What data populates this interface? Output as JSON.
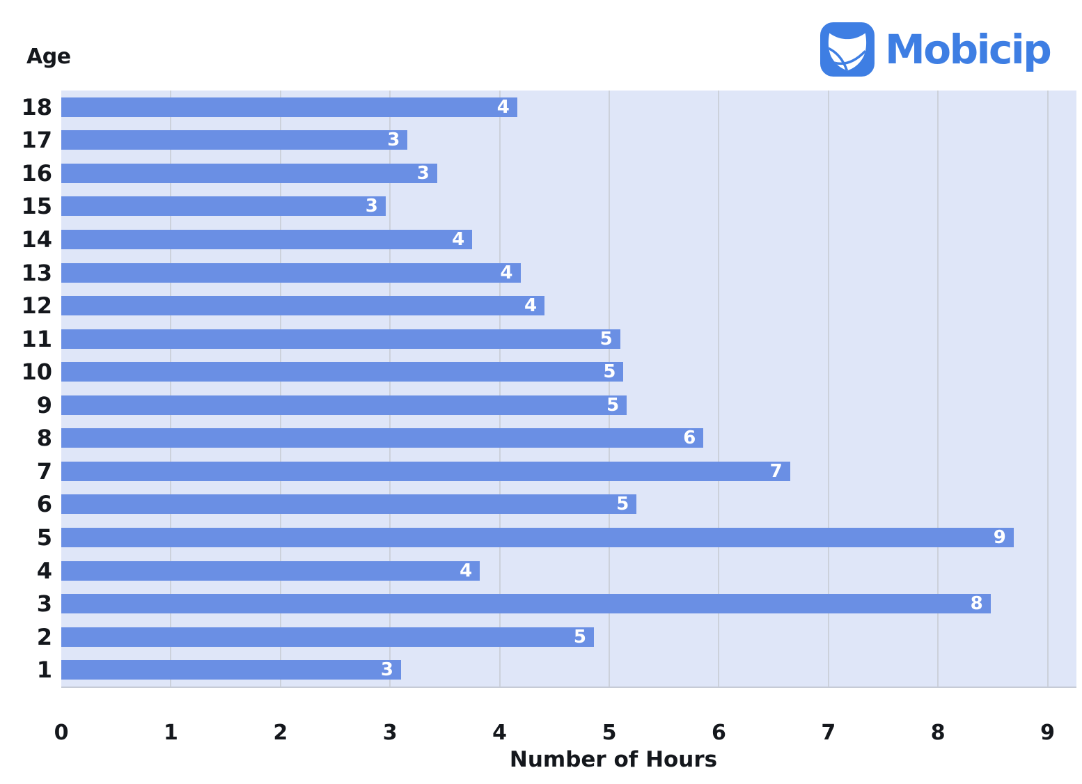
{
  "logo": {
    "brand": "Mobicip",
    "icon": "mobicip-shield-icon"
  },
  "chart_data": {
    "type": "bar",
    "orientation": "horizontal",
    "title": "",
    "ylabel": "Age",
    "xlabel": "Number of Hours",
    "categories": [
      "18",
      "17",
      "16",
      "15",
      "14",
      "13",
      "12",
      "11",
      "10",
      "9",
      "8",
      "7",
      "6",
      "5",
      "4",
      "3",
      "2",
      "1"
    ],
    "values": [
      4.16,
      3.16,
      3.43,
      2.96,
      3.75,
      4.19,
      4.41,
      5.1,
      5.13,
      5.16,
      5.86,
      6.65,
      5.25,
      8.69,
      3.82,
      8.48,
      4.86,
      3.1
    ],
    "bar_labels": [
      "4",
      "3",
      "3",
      "3",
      "4",
      "4",
      "4",
      "5",
      "5",
      "5",
      "6",
      "7",
      "5",
      "9",
      "4",
      "8",
      "5",
      "3"
    ],
    "x_ticks": [
      "0",
      "1",
      "2",
      "3",
      "4",
      "5",
      "6",
      "7",
      "8",
      "9"
    ],
    "xlim": [
      0,
      9.26
    ],
    "grid": "vertical-at-integers",
    "legend": "none",
    "colors": {
      "bar": "#6a8fe4",
      "plot_background": "#dfe6f8",
      "gridline": "#ccd1db",
      "axis_line": "#c6cbd6",
      "text": "#14171c",
      "bar_label_text": "#ffffff",
      "logo_blue": "#3e7ee3"
    }
  }
}
